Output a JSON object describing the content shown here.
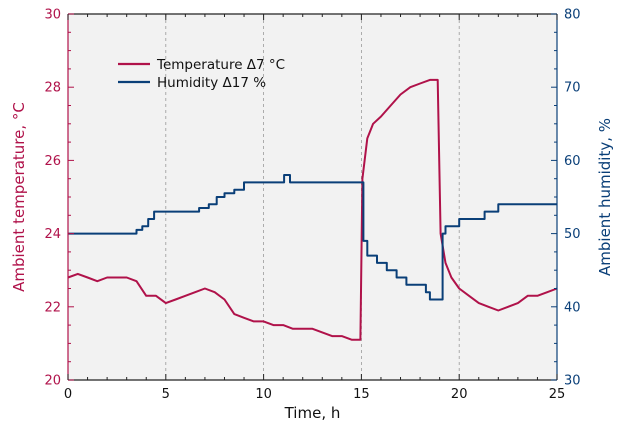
{
  "chart_data": {
    "type": "line",
    "xlabel": "Time, h",
    "ylabel_left": "Ambient temperature, °C",
    "ylabel_right": "Ambient humidity, %",
    "xlim": [
      0,
      25
    ],
    "ylim_left": [
      20,
      30
    ],
    "ylim_right": [
      30,
      80
    ],
    "x_ticks": [
      0,
      5,
      10,
      15,
      20,
      25
    ],
    "y_ticks_left": [
      20,
      22,
      24,
      26,
      28,
      30
    ],
    "y_ticks_right": [
      30,
      40,
      50,
      60,
      70,
      80
    ],
    "grid": "vertical dashed at major x ticks",
    "legend": {
      "placement": "top-left"
    },
    "colors": {
      "temperature": "#b0124a",
      "humidity": "#0a3f78",
      "background": "#f2f2f2"
    },
    "series": [
      {
        "name": "Temperature  Δ7 °C",
        "axis": "left",
        "x": [
          0,
          0.5,
          1,
          1.5,
          2,
          2.5,
          3,
          3.5,
          4,
          4.5,
          5,
          5.5,
          6,
          6.5,
          7,
          7.5,
          8,
          8.5,
          9,
          9.5,
          10,
          10.5,
          11,
          11.5,
          12,
          12.5,
          13,
          13.5,
          14,
          14.5,
          14.95,
          15.05,
          15.3,
          15.6,
          16,
          16.5,
          17,
          17.5,
          18,
          18.5,
          18.9,
          19.05,
          19.3,
          19.6,
          20,
          20.5,
          21,
          21.5,
          22,
          22.5,
          23,
          23.5,
          24,
          24.5,
          25
        ],
        "values": [
          22.8,
          22.9,
          22.8,
          22.7,
          22.8,
          22.8,
          22.8,
          22.7,
          22.3,
          22.3,
          22.1,
          22.2,
          22.3,
          22.4,
          22.5,
          22.4,
          22.2,
          21.8,
          21.7,
          21.6,
          21.6,
          21.5,
          21.5,
          21.4,
          21.4,
          21.4,
          21.3,
          21.2,
          21.2,
          21.1,
          21.1,
          25.5,
          26.6,
          27.0,
          27.2,
          27.5,
          27.8,
          28.0,
          28.1,
          28.2,
          28.2,
          24.0,
          23.2,
          22.8,
          22.5,
          22.3,
          22.1,
          22.0,
          21.9,
          22.0,
          22.1,
          22.3,
          22.3,
          22.4,
          22.5
        ]
      },
      {
        "name": "Humidity  Δ17 %",
        "axis": "right",
        "x": [
          0,
          3.4,
          3.5,
          3.8,
          4.1,
          4.4,
          6.3,
          6.7,
          7.2,
          7.6,
          8.0,
          8.5,
          9.0,
          11.0,
          11.05,
          11.3,
          11.35,
          15.0,
          15.1,
          15.3,
          15.8,
          16.3,
          16.8,
          17.3,
          17.8,
          18.3,
          18.5,
          19.0,
          19.15,
          19.3,
          19.6,
          20.0,
          21.0,
          21.3,
          21.6,
          22.0,
          22.4,
          24.0,
          25.0
        ],
        "values": [
          50,
          50,
          50.5,
          51,
          52,
          53,
          53,
          53.5,
          54,
          55,
          55.5,
          56,
          57,
          57,
          58,
          58,
          57,
          57,
          49,
          47,
          46,
          45,
          44,
          43,
          43,
          42,
          41,
          41,
          50,
          51,
          51,
          52,
          52,
          53,
          53,
          54,
          54,
          54,
          54
        ]
      }
    ]
  }
}
